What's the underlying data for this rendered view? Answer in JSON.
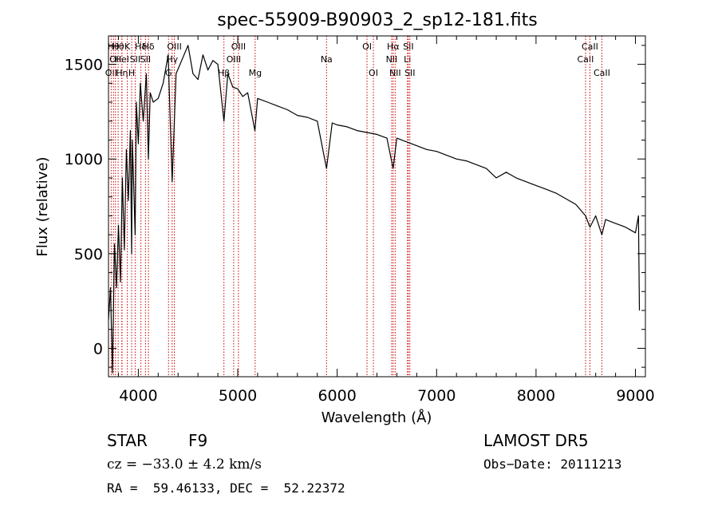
{
  "chart_data": {
    "type": "line",
    "title": "spec-55909-B90903_2_sp12-181.fits",
    "xlabel": "Wavelength (Å)",
    "ylabel": "Flux (relative)",
    "xlim": [
      3700,
      9100
    ],
    "ylim": [
      -150,
      1650
    ],
    "x_ticks": [
      4000,
      5000,
      6000,
      7000,
      8000,
      9000
    ],
    "y_ticks": [
      0,
      500,
      1000,
      1500
    ],
    "grid": false,
    "line_color": "#000000",
    "marker_color": "#cc0000",
    "series": [
      {
        "x": [
          3700,
          3720,
          3740,
          3760,
          3780,
          3800,
          3820,
          3840,
          3860,
          3880,
          3900,
          3920,
          3933,
          3940,
          3968,
          3980,
          4000,
          4020,
          4050,
          4080,
          4101,
          4120,
          4150,
          4200,
          4250,
          4300,
          4340,
          4380,
          4420,
          4460,
          4500,
          4550,
          4600,
          4650,
          4700,
          4750,
          4800,
          4861,
          4900,
          4950,
          5000,
          5050,
          5100,
          5172,
          5200,
          5300,
          5400,
          5500,
          5600,
          5700,
          5800,
          5893,
          5950,
          6000,
          6100,
          6200,
          6300,
          6400,
          6500,
          6563,
          6600,
          6700,
          6800,
          6900,
          7000,
          7100,
          7200,
          7300,
          7400,
          7500,
          7600,
          7700,
          7800,
          7900,
          8000,
          8100,
          8200,
          8300,
          8400,
          8498,
          8542,
          8600,
          8662,
          8700,
          8800,
          8900,
          9000,
          9030,
          9040
        ],
        "y": [
          150,
          320,
          -130,
          550,
          320,
          650,
          350,
          900,
          520,
          1050,
          780,
          1150,
          500,
          1100,
          600,
          1300,
          1080,
          1400,
          1200,
          1450,
          1000,
          1350,
          1300,
          1320,
          1400,
          1550,
          880,
          1450,
          1500,
          1550,
          1600,
          1450,
          1420,
          1550,
          1470,
          1520,
          1500,
          1200,
          1450,
          1380,
          1370,
          1330,
          1350,
          1150,
          1320,
          1300,
          1280,
          1260,
          1230,
          1220,
          1200,
          950,
          1190,
          1180,
          1170,
          1150,
          1140,
          1130,
          1110,
          950,
          1110,
          1090,
          1070,
          1050,
          1040,
          1020,
          1000,
          990,
          970,
          950,
          900,
          930,
          900,
          880,
          860,
          840,
          820,
          790,
          760,
          700,
          640,
          700,
          600,
          680,
          660,
          640,
          610,
          700,
          200
        ]
      }
    ],
    "line_markers": [
      {
        "x": 3727,
        "row": 3,
        "label": "OII"
      },
      {
        "x": 3750,
        "row": 1,
        "label": "Hθ"
      },
      {
        "x": 3770,
        "row": 2,
        "label": "OII"
      },
      {
        "x": 3797,
        "row": 1,
        "label": "Hθ"
      },
      {
        "x": 3835,
        "row": 2,
        "label": "Hel"
      },
      {
        "x": 3835,
        "row": 3,
        "label": "Hη"
      },
      {
        "x": 3889,
        "row": 1,
        "label": "K"
      },
      {
        "x": 3933,
        "row": 3,
        "label": "H"
      },
      {
        "x": 3968,
        "row": 2,
        "label": "SII"
      },
      {
        "x": 4026,
        "row": 1,
        "label": "Hδ"
      },
      {
        "x": 4072,
        "row": 2,
        "label": "SII"
      },
      {
        "x": 4102,
        "row": 1,
        "label": "Hδ"
      },
      {
        "x": 4304,
        "row": 3,
        "label": "G"
      },
      {
        "x": 4340,
        "row": 2,
        "label": "Hγ"
      },
      {
        "x": 4363,
        "row": 1,
        "label": "OIII"
      },
      {
        "x": 4861,
        "row": 3,
        "label": "Hβ"
      },
      {
        "x": 4959,
        "row": 2,
        "label": "OIII"
      },
      {
        "x": 5007,
        "row": 1,
        "label": "OIII"
      },
      {
        "x": 5175,
        "row": 3,
        "label": "Mg"
      },
      {
        "x": 5893,
        "row": 2,
        "label": "Na"
      },
      {
        "x": 6300,
        "row": 1,
        "label": "OI"
      },
      {
        "x": 6364,
        "row": 3,
        "label": "OI"
      },
      {
        "x": 6548,
        "row": 2,
        "label": "NII"
      },
      {
        "x": 6563,
        "row": 1,
        "label": "Hα"
      },
      {
        "x": 6583,
        "row": 3,
        "label": "NII"
      },
      {
        "x": 6707,
        "row": 2,
        "label": "Li"
      },
      {
        "x": 6716,
        "row": 1,
        "label": "SII"
      },
      {
        "x": 6731,
        "row": 3,
        "label": "SII"
      },
      {
        "x": 8498,
        "row": 2,
        "label": "CaII"
      },
      {
        "x": 8542,
        "row": 1,
        "label": "CaII"
      },
      {
        "x": 8662,
        "row": 3,
        "label": "CaII"
      }
    ]
  },
  "info": {
    "object_class": "STAR",
    "subclass": "F9",
    "survey": "LAMOST DR5",
    "cz": "cz = −33.0 ± 4.2 km/s",
    "obs_date": "Obs−Date: 20111213",
    "radec": "RA =  59.46133, DEC =  52.22372"
  }
}
